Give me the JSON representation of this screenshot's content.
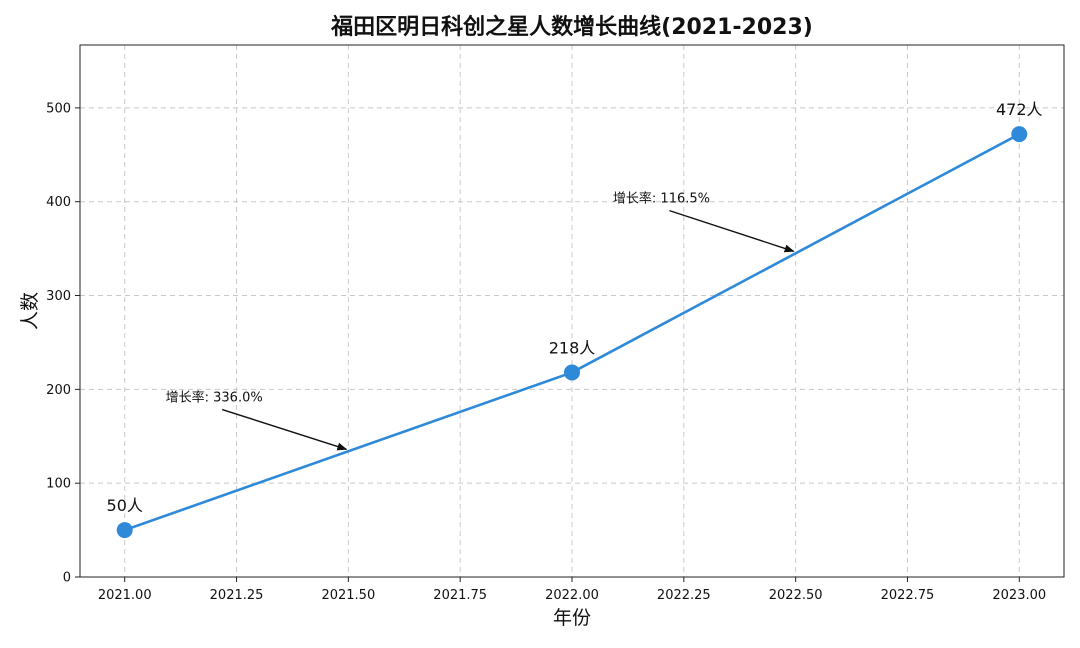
{
  "chart_data": {
    "type": "line",
    "title": "福田区明日科创之星人数增长曲线(2021-2023)",
    "xlabel": "年份",
    "ylabel": "人数",
    "xlim": [
      2020.9,
      2023.1
    ],
    "ylim": [
      0,
      567
    ],
    "x_ticks": [
      2021.0,
      2021.25,
      2021.5,
      2021.75,
      2022.0,
      2022.25,
      2022.5,
      2022.75,
      2023.0
    ],
    "x_tick_labels": [
      "2021.00",
      "2021.25",
      "2021.50",
      "2021.75",
      "2022.00",
      "2022.25",
      "2022.50",
      "2022.75",
      "2023.00"
    ],
    "y_ticks": [
      0,
      100,
      200,
      300,
      400,
      500
    ],
    "y_tick_labels": [
      "0",
      "100",
      "200",
      "300",
      "400",
      "500"
    ],
    "grid": true,
    "legend": "none",
    "series": [
      {
        "color": "#2e8ad8",
        "points": [
          {
            "x": 2021,
            "y": 50,
            "label": "50人"
          },
          {
            "x": 2022,
            "y": 218,
            "label": "218人"
          },
          {
            "x": 2023,
            "y": 472,
            "label": "472人"
          }
        ]
      }
    ],
    "annotations": [
      {
        "text": "增长率: 336.0%",
        "target_x": 2021.5,
        "target_y": 134,
        "text_x": 2021.2,
        "text_y": 187
      },
      {
        "text": "增长率: 116.5%",
        "target_x": 2022.5,
        "target_y": 345,
        "text_x": 2022.2,
        "text_y": 399
      }
    ]
  }
}
